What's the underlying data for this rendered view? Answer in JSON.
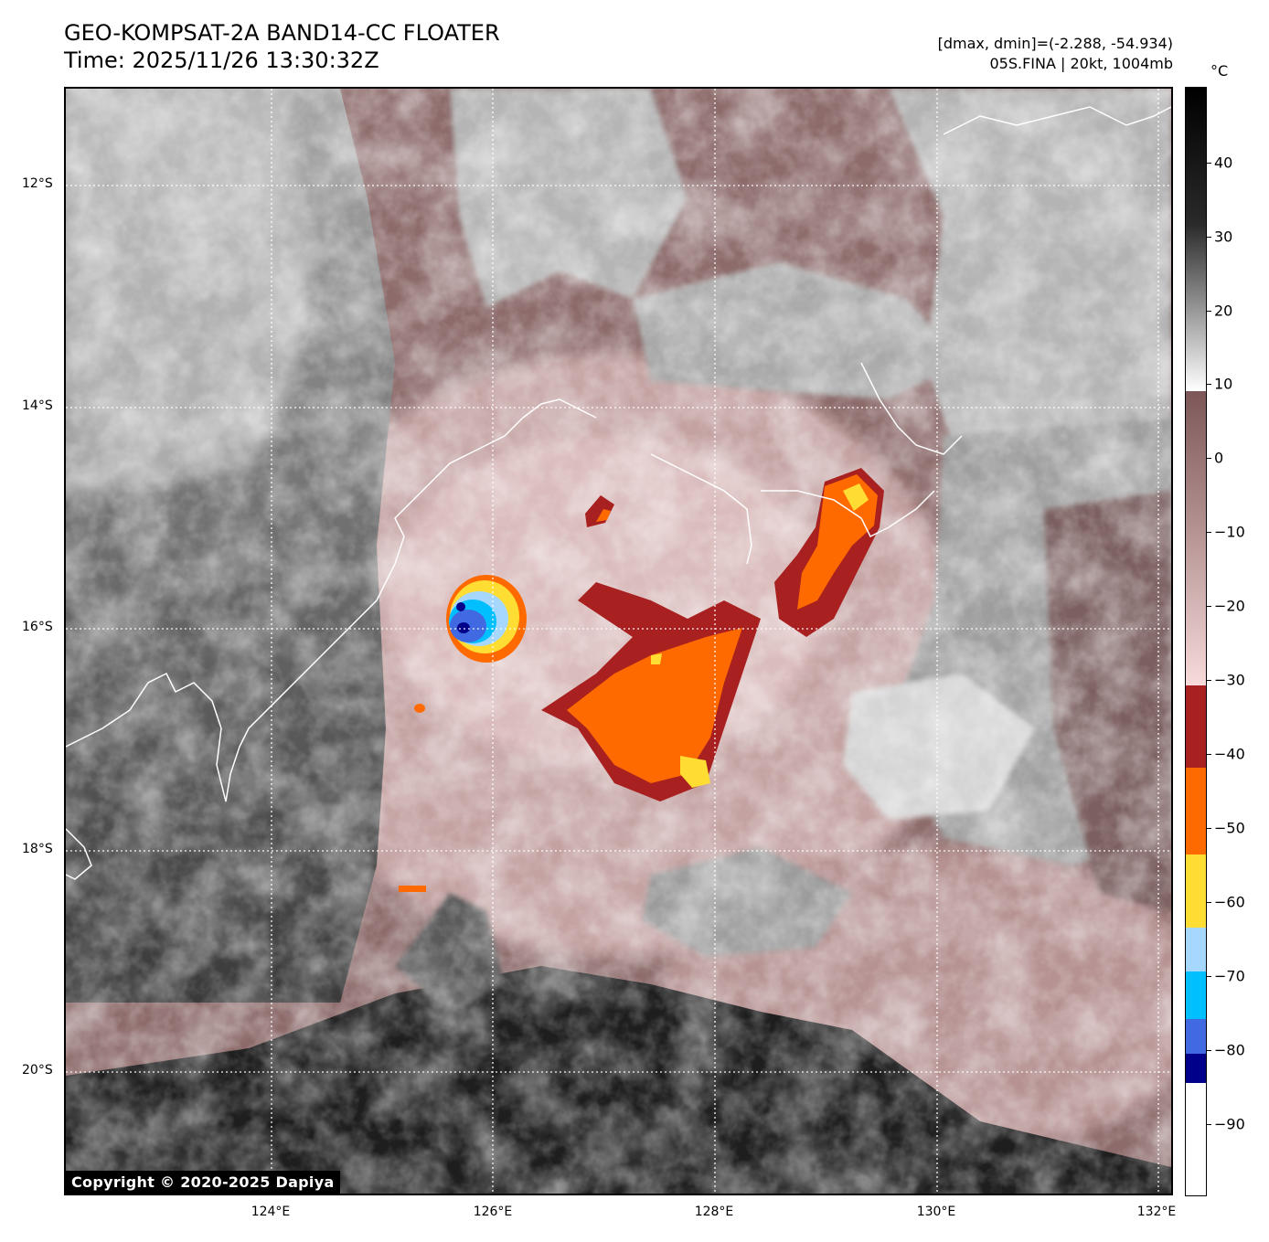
{
  "title": {
    "line1": "GEO-KOMPSAT-2A BAND14-CC FLOATER",
    "line2": "Time: 2025/11/26 13:30:32Z"
  },
  "info": {
    "line1": "[dmax, dmin]=(-2.288, -54.934)",
    "line2": "05S.FINA | 20kt, 1004mb"
  },
  "colorbar": {
    "unit": "°C",
    "ticks": [
      "40",
      "30",
      "20",
      "10",
      "0",
      "−10",
      "−20",
      "−30",
      "−40",
      "−50",
      "−60",
      "−70",
      "−80",
      "−90"
    ],
    "colors": {
      "white_band": "#ffffff",
      "dark_blue": "#00008b",
      "royal_blue": "#4169e1",
      "deep_sky": "#00bfff",
      "light_sky": "#a6d8ff",
      "yellow": "#ffdd33",
      "orange": "#ff6a00",
      "dark_red": "#a8201f",
      "pink_low": "#f5d3d3",
      "brown_top": "#7d5757"
    }
  },
  "axes": {
    "lat_labels": [
      "12°S",
      "14°S",
      "16°S",
      "18°S",
      "20°S"
    ],
    "lon_labels": [
      "124°E",
      "126°E",
      "128°E",
      "130°E",
      "132°E"
    ]
  },
  "copyright": "Copyright © 2020-2025 Dapiya"
}
